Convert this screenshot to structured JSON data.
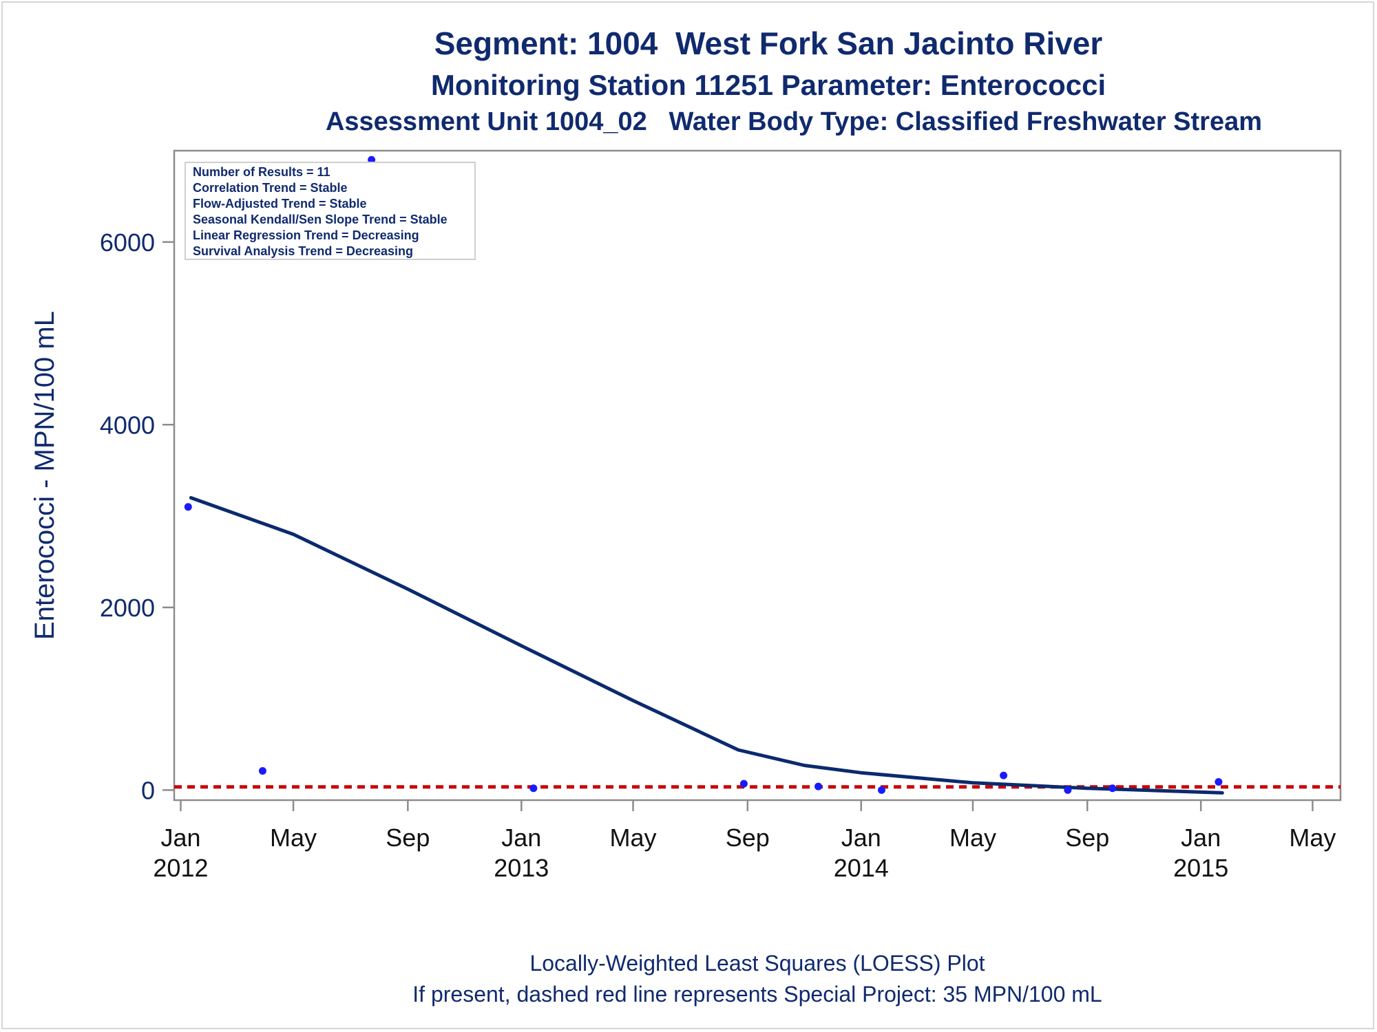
{
  "chart_data": {
    "type": "scatter",
    "title": "Segment: 1004  West Fork San Jacinto River",
    "subtitle1": "Monitoring Station 11251 Parameter: Enterococci",
    "subtitle2": "Assessment Unit 1004_02   Water Body Type: Classified Freshwater Stream",
    "xlabel": "",
    "ylabel": "Enterococci - MPN/100 mL",
    "xlim": [
      "2011-12-25",
      "2015-05-31"
    ],
    "ylim": [
      -110,
      7000
    ],
    "yticks": [
      0,
      2000,
      4000,
      6000
    ],
    "xticks": [
      {
        "date": "2012-01-01",
        "label": "Jan",
        "year": "2012"
      },
      {
        "date": "2012-05-01",
        "label": "May",
        "year": ""
      },
      {
        "date": "2012-09-01",
        "label": "Sep",
        "year": ""
      },
      {
        "date": "2013-01-01",
        "label": "Jan",
        "year": "2013"
      },
      {
        "date": "2013-05-01",
        "label": "May",
        "year": ""
      },
      {
        "date": "2013-09-01",
        "label": "Sep",
        "year": ""
      },
      {
        "date": "2014-01-01",
        "label": "Jan",
        "year": "2014"
      },
      {
        "date": "2014-05-01",
        "label": "May",
        "year": ""
      },
      {
        "date": "2014-09-01",
        "label": "Sep",
        "year": ""
      },
      {
        "date": "2015-01-01",
        "label": "Jan",
        "year": "2015"
      },
      {
        "date": "2015-05-01",
        "label": "May",
        "year": ""
      }
    ],
    "grid": false,
    "points": [
      {
        "x": "2012-01-09",
        "y": 3100
      },
      {
        "x": "2012-03-29",
        "y": 210
      },
      {
        "x": "2012-07-24",
        "y": 6900
      },
      {
        "x": "2013-01-14",
        "y": 20
      },
      {
        "x": "2013-08-28",
        "y": 70
      },
      {
        "x": "2013-11-16",
        "y": 40
      },
      {
        "x": "2014-01-23",
        "y": 0
      },
      {
        "x": "2014-06-03",
        "y": 160
      },
      {
        "x": "2014-08-11",
        "y": 0
      },
      {
        "x": "2014-09-28",
        "y": 20
      },
      {
        "x": "2015-01-20",
        "y": 90
      }
    ],
    "loess": [
      {
        "x": "2012-01-12",
        "y": 3200
      },
      {
        "x": "2012-05-01",
        "y": 2800
      },
      {
        "x": "2012-09-01",
        "y": 2200
      },
      {
        "x": "2013-01-01",
        "y": 1580
      },
      {
        "x": "2013-05-01",
        "y": 980
      },
      {
        "x": "2013-08-22",
        "y": 440
      },
      {
        "x": "2013-11-01",
        "y": 270
      },
      {
        "x": "2014-01-01",
        "y": 190
      },
      {
        "x": "2014-05-01",
        "y": 80
      },
      {
        "x": "2014-09-01",
        "y": 20
      },
      {
        "x": "2015-01-24",
        "y": -30
      }
    ],
    "reference_line": {
      "y": 35,
      "style": "dashed",
      "color": "#cc0000"
    },
    "inset_box": {
      "position": "top-left",
      "lines": [
        "Number of Results = 11",
        "Correlation Trend = Stable",
        "Flow-Adjusted Trend = Stable",
        "Seasonal Kendall/Sen Slope Trend = Stable",
        "Linear Regression Trend = Decreasing",
        "Survival Analysis Trend = Decreasing"
      ]
    },
    "footnote1": "Locally-Weighted Least Squares (LOESS) Plot",
    "footnote2": "If present, dashed red line represents Special Project: 35 MPN/100 mL",
    "colors": {
      "text": "#102a6e",
      "points": "#1a1aff",
      "loess": "#0b2a6e",
      "reference": "#cc0000",
      "axes": "#8c8c8c"
    }
  }
}
